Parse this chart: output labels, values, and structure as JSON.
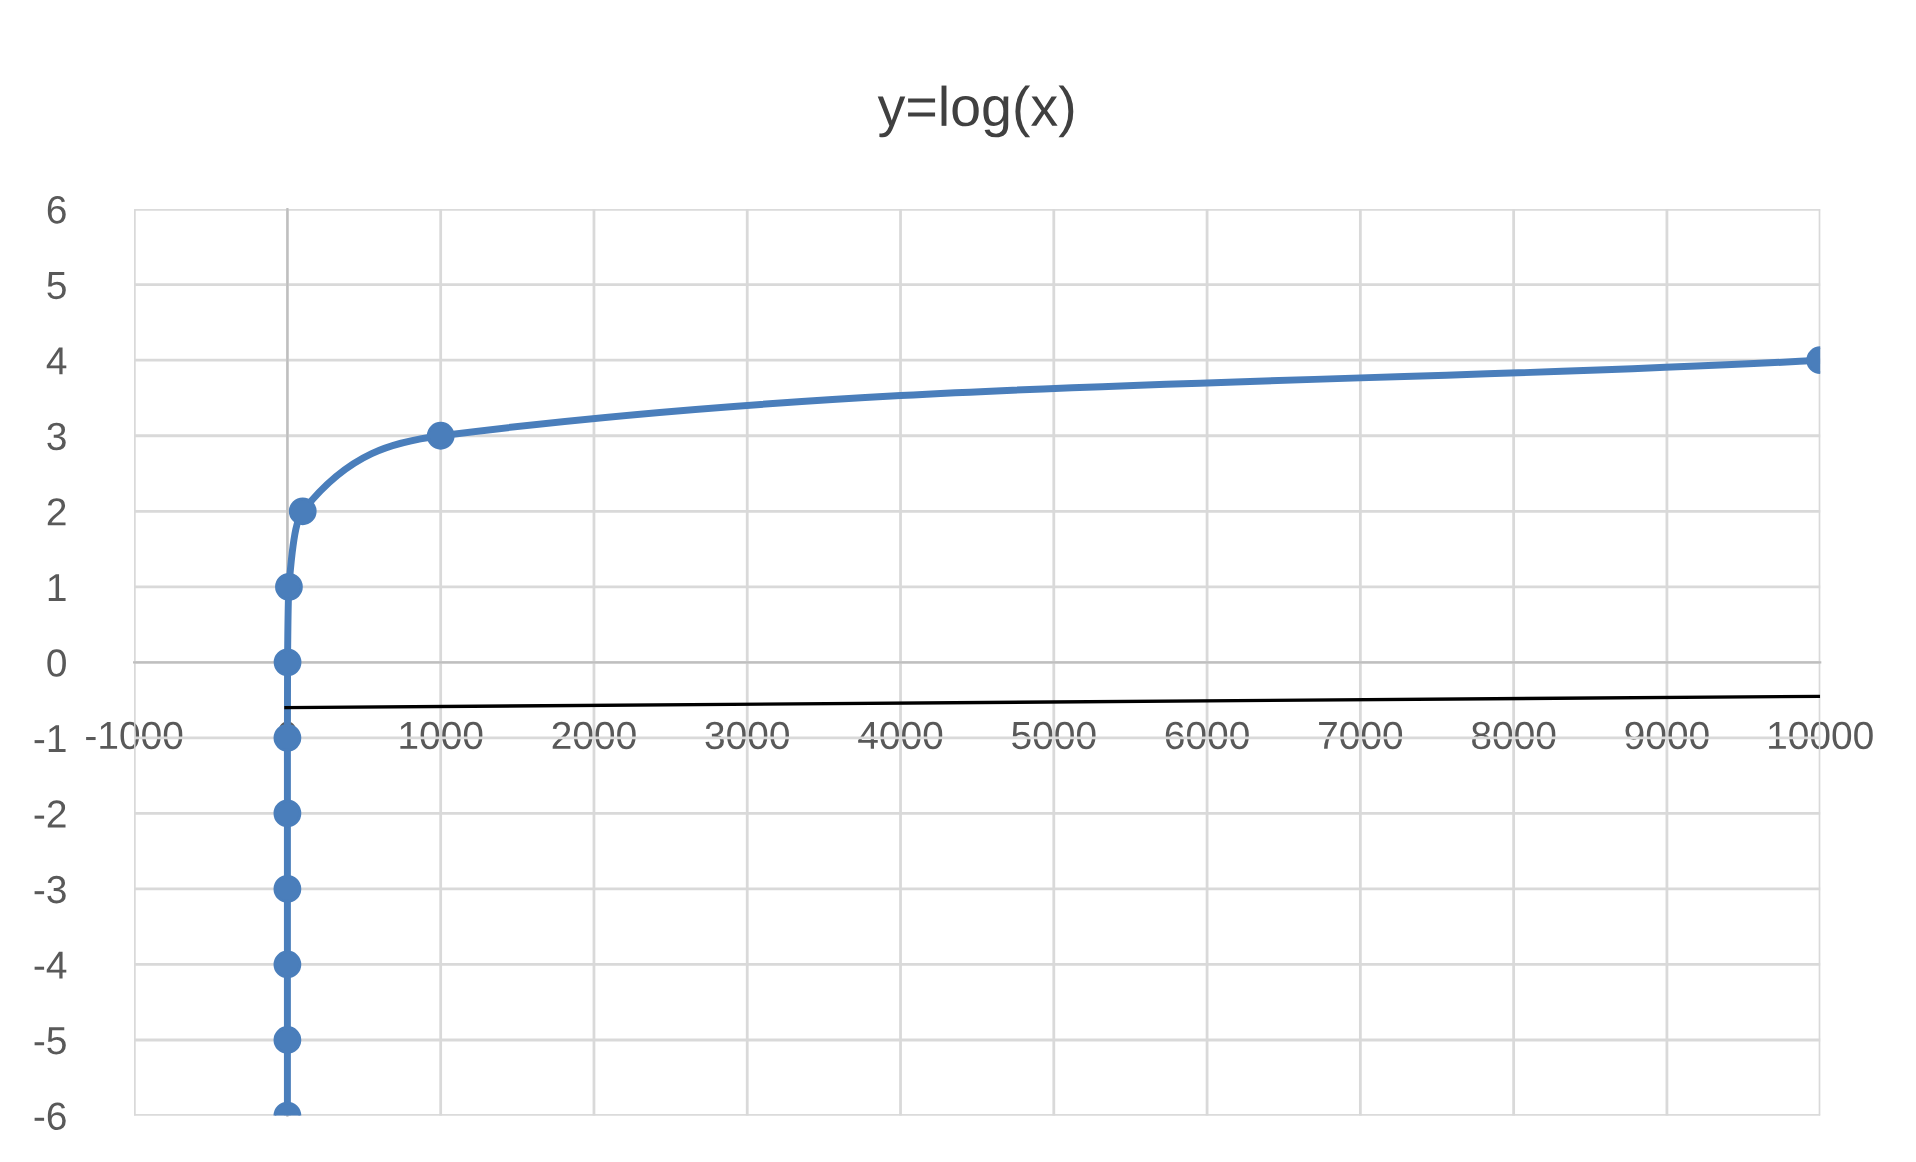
{
  "chart_data": {
    "type": "line",
    "title": "y=log(x)",
    "series": [
      {
        "color": "#4a7ebb",
        "marker": "circle",
        "x": [
          1e-06,
          1e-05,
          0.0001,
          0.001,
          0.01,
          0.1,
          1,
          10,
          100,
          1000,
          10000
        ],
        "values": [
          -6,
          -5,
          -4,
          -3,
          -2,
          -1,
          0,
          1,
          2,
          3,
          4
        ]
      },
      {
        "color": "#000000",
        "marker": "none",
        "x": [
          -20,
          10000
        ],
        "values": [
          -0.6,
          -0.45
        ]
      }
    ],
    "xlim": [
      -1000,
      10000
    ],
    "xticks": [
      -1000,
      0,
      1000,
      2000,
      3000,
      4000,
      5000,
      6000,
      7000,
      8000,
      9000,
      10000
    ],
    "ylim": [
      -6,
      6
    ],
    "yticks": [
      -6,
      -5,
      -4,
      -3,
      -2,
      -1,
      0,
      1,
      2,
      3,
      4,
      5,
      6
    ],
    "grid": true,
    "legend": false
  }
}
